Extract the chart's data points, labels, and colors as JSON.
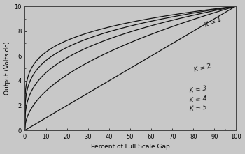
{
  "title": "",
  "xlabel": "Percent of Full Scale Gap",
  "ylabel": "Output (Volts dc)",
  "xlim": [
    0,
    100
  ],
  "ylim": [
    0,
    10
  ],
  "xticks": [
    0,
    10,
    20,
    30,
    40,
    50,
    60,
    70,
    80,
    90,
    100
  ],
  "yticks": [
    0,
    2,
    4,
    6,
    8,
    10
  ],
  "K_values": [
    1,
    2,
    3,
    4,
    5
  ],
  "K_labels": [
    "K = 1",
    "K = 2",
    "K = 3",
    "K = 4",
    "K = 5"
  ],
  "line_color": "#111111",
  "background_color": "#c8c8c8",
  "plot_bg_color": "#c8c8c8",
  "label_offsets_x": [
    85,
    80,
    78,
    78,
    78
  ],
  "label_offsets_y": [
    8.7,
    5.0,
    3.3,
    2.5,
    1.8
  ],
  "max_output": 10,
  "font_size": 6.5,
  "tick_font_size": 6,
  "label_rotation": [
    22,
    14,
    9,
    7,
    5
  ]
}
